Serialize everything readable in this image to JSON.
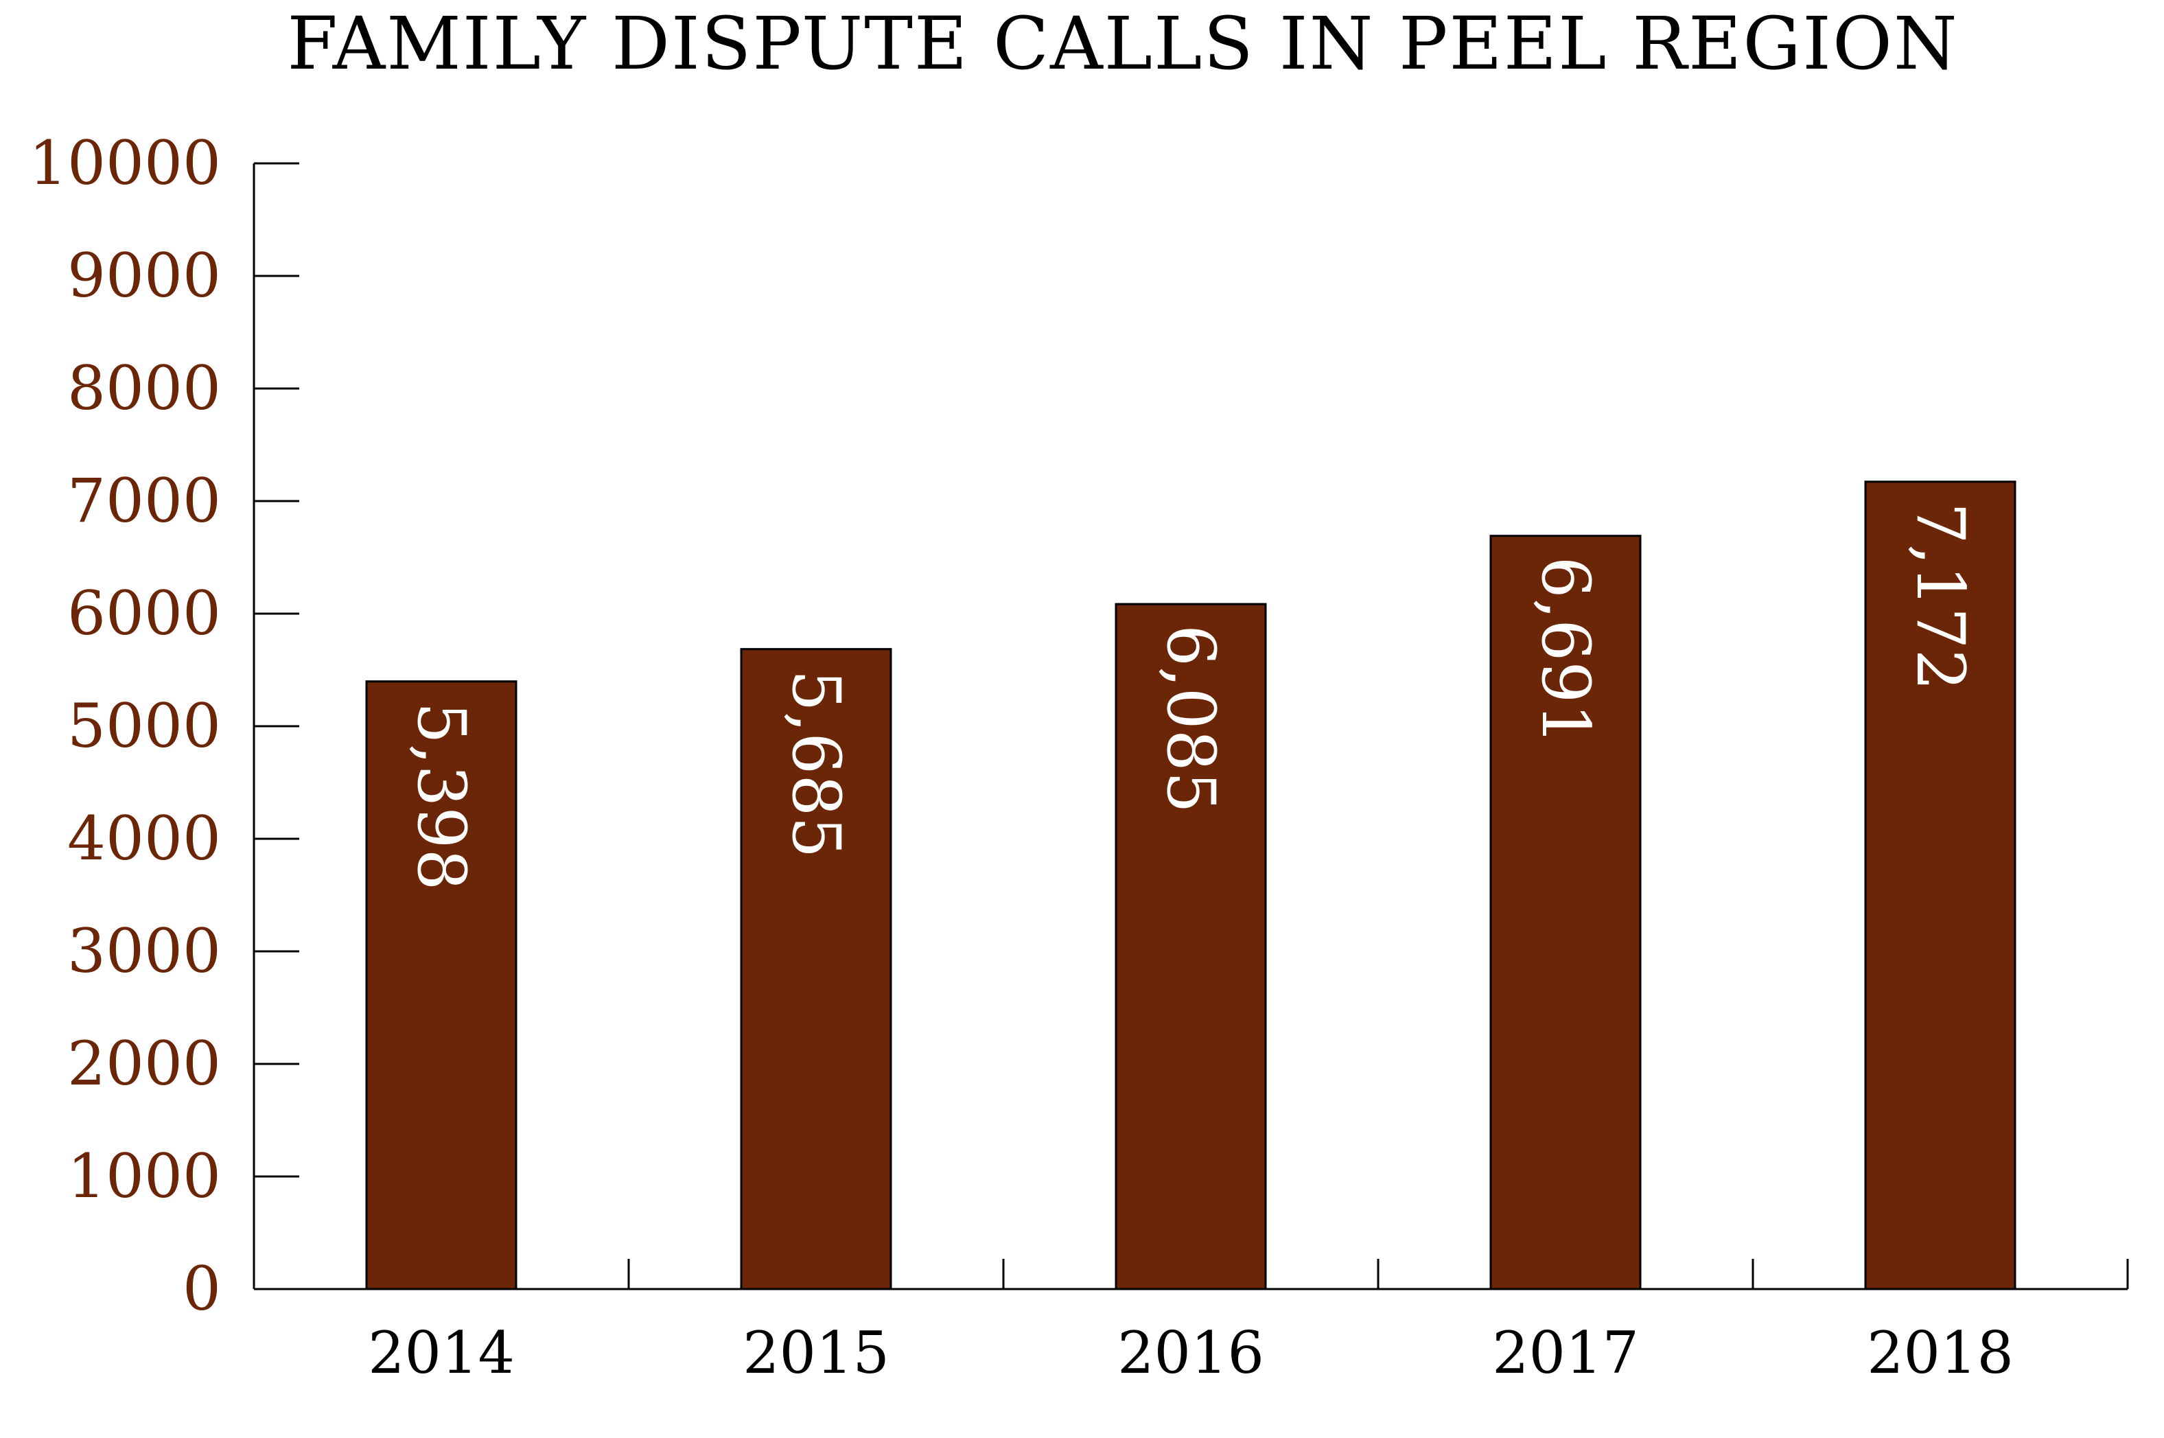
{
  "chart_data": {
    "type": "bar",
    "title": "FAMILY DISPUTE CALLS IN PEEL REGION",
    "xlabel": "",
    "ylabel": "",
    "categories": [
      "2014",
      "2015",
      "2016",
      "2017",
      "2018"
    ],
    "values": [
      5398,
      5685,
      6085,
      6691,
      7172
    ],
    "data_labels": [
      "5,398",
      "5,685",
      "6,085",
      "6,691",
      "7,172"
    ],
    "data_label_orientation": "rotated-90-inside-top",
    "ylim": [
      0,
      10000
    ],
    "yticks": [
      0,
      1000,
      2000,
      3000,
      4000,
      5000,
      6000,
      7000,
      8000,
      9000,
      10000
    ],
    "ytick_labels": [
      "0",
      "1000",
      "2000",
      "3000",
      "4000",
      "5000",
      "6000",
      "7000",
      "8000",
      "9000",
      "10000"
    ],
    "grid": false,
    "legend": "none",
    "colors": {
      "bar_fill": "#6b2608",
      "bar_stroke": "#000000",
      "axis": "#000000",
      "ytick_label": "#6b2608",
      "xtick_label": "#000000",
      "title": "#000000",
      "data_label": "#ffffff"
    }
  }
}
